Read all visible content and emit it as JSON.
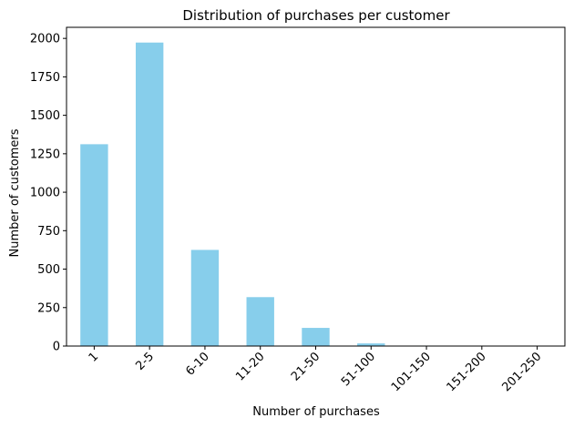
{
  "chart_data": {
    "type": "bar",
    "title": "Distribution of purchases per customer",
    "xlabel": "Number of purchases",
    "ylabel": "Number of customers",
    "categories": [
      "1",
      "2-5",
      "6-10",
      "11-20",
      "21-50",
      "51-100",
      "101-150",
      "151-200",
      "201-250"
    ],
    "values": [
      1312,
      1973,
      625,
      318,
      118,
      17,
      3,
      1,
      2
    ],
    "ylim": [
      0,
      2072
    ],
    "yticks": [
      0,
      250,
      500,
      750,
      1000,
      1250,
      1500,
      1750,
      2000
    ],
    "bar_color": "#87ceeb",
    "grid": false,
    "legend": "none"
  }
}
